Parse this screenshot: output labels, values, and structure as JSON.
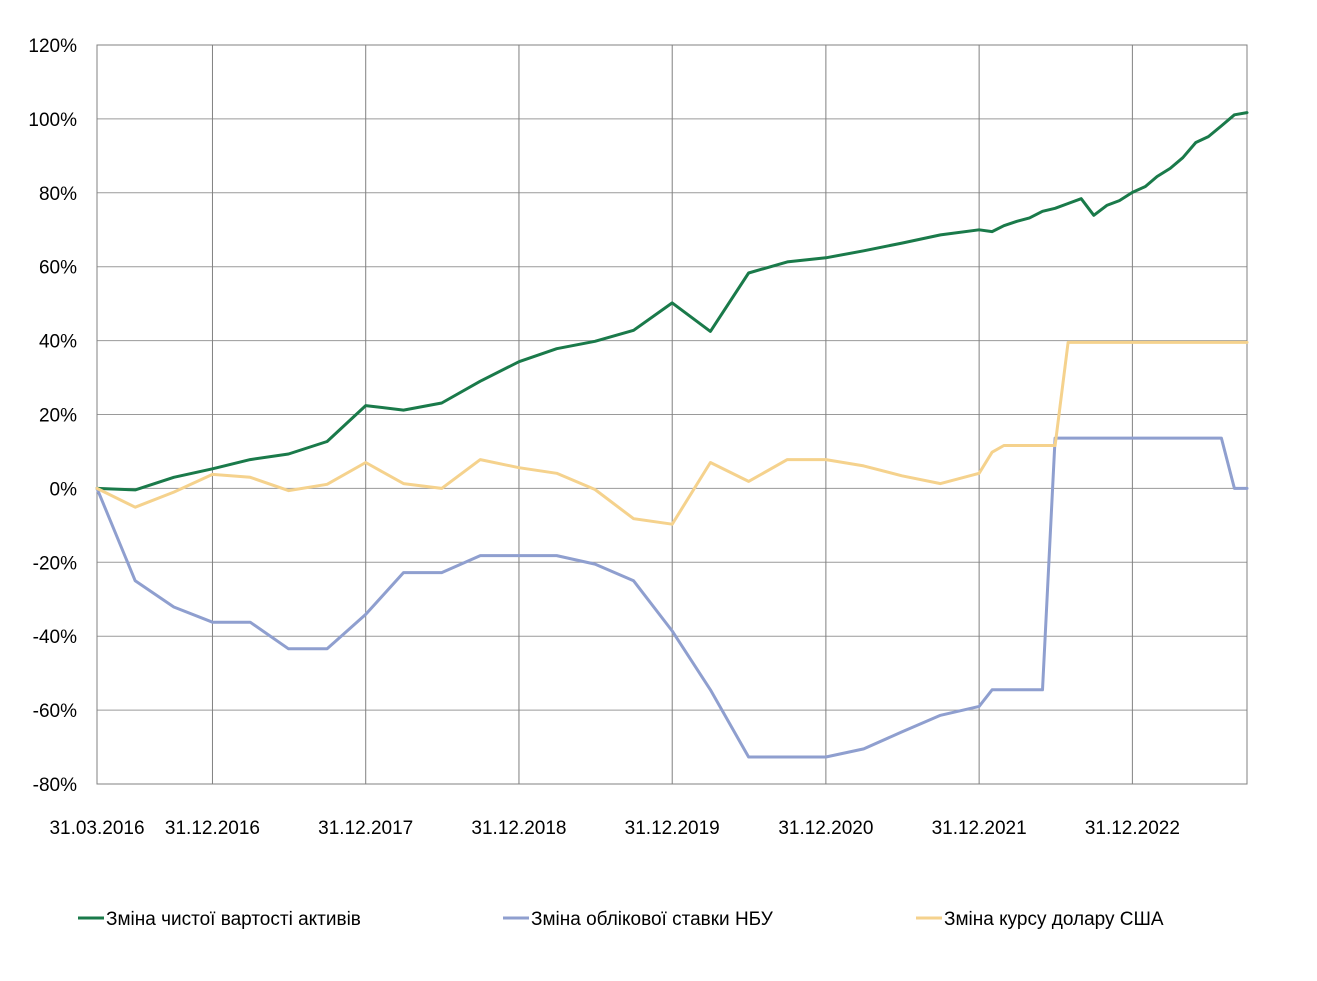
{
  "chart_data": {
    "type": "line",
    "title": "",
    "xlabel": "",
    "ylabel": "",
    "ylim": [
      -80,
      120
    ],
    "yticks": [
      120,
      100,
      80,
      60,
      40,
      20,
      0,
      -20,
      -40,
      -60,
      -80
    ],
    "ytick_labels": [
      "120%",
      "100%",
      "80%",
      "60%",
      "40%",
      "20%",
      "0%",
      "-20%",
      "-40%",
      "-60%",
      "-80%"
    ],
    "xlim": [
      "2016-03-31",
      "2023-09-30"
    ],
    "xticks": [
      "2016-03-31",
      "2016-12-31",
      "2017-12-31",
      "2018-12-31",
      "2019-12-31",
      "2020-12-31",
      "2021-12-31",
      "2022-12-31"
    ],
    "xtick_labels": [
      "31.03.2016",
      "31.12.2016",
      "31.12.2017",
      "31.12.2018",
      "31.12.2019",
      "31.12.2020",
      "31.12.2021",
      "31.12.2022"
    ],
    "grid": true,
    "legend_position": "bottom",
    "series": [
      {
        "name": "Зміна чистої вартості активів",
        "color": "#1a7a4a",
        "points": [
          [
            "2016-03-31",
            0.0
          ],
          [
            "2016-06-30",
            -0.4
          ],
          [
            "2016-09-30",
            3.0
          ],
          [
            "2016-12-31",
            5.3
          ],
          [
            "2017-03-31",
            7.8
          ],
          [
            "2017-06-30",
            9.3
          ],
          [
            "2017-09-30",
            12.7
          ],
          [
            "2017-12-31",
            22.4
          ],
          [
            "2018-03-31",
            21.2
          ],
          [
            "2018-06-30",
            23.1
          ],
          [
            "2018-09-30",
            29.0
          ],
          [
            "2018-12-31",
            34.3
          ],
          [
            "2019-03-31",
            37.8
          ],
          [
            "2019-06-30",
            39.8
          ],
          [
            "2019-09-30",
            42.8
          ],
          [
            "2019-12-31",
            50.2
          ],
          [
            "2020-03-31",
            42.5
          ],
          [
            "2020-06-30",
            58.3
          ],
          [
            "2020-09-30",
            61.3
          ],
          [
            "2020-12-31",
            62.4
          ],
          [
            "2021-03-31",
            64.3
          ],
          [
            "2021-06-30",
            66.4
          ],
          [
            "2021-09-30",
            68.6
          ],
          [
            "2021-12-31",
            70.0
          ],
          [
            "2022-01-31",
            69.5
          ],
          [
            "2022-02-28",
            71.1
          ],
          [
            "2022-03-31",
            72.3
          ],
          [
            "2022-04-30",
            73.2
          ],
          [
            "2022-05-31",
            75.0
          ],
          [
            "2022-06-30",
            75.8
          ],
          [
            "2022-07-31",
            77.1
          ],
          [
            "2022-08-31",
            78.4
          ],
          [
            "2022-09-30",
            73.9
          ],
          [
            "2022-10-31",
            76.6
          ],
          [
            "2022-11-30",
            77.9
          ],
          [
            "2022-12-31",
            80.1
          ],
          [
            "2023-01-31",
            81.7
          ],
          [
            "2023-02-28",
            84.4
          ],
          [
            "2023-03-31",
            86.6
          ],
          [
            "2023-04-30",
            89.5
          ],
          [
            "2023-05-31",
            93.6
          ],
          [
            "2023-06-30",
            95.2
          ],
          [
            "2023-07-31",
            98.1
          ],
          [
            "2023-08-31",
            101.1
          ],
          [
            "2023-09-30",
            101.7
          ]
        ]
      },
      {
        "name": "Зміна облікової ставки НБУ",
        "color": "#8f9fcf",
        "points": [
          [
            "2016-03-31",
            0.0
          ],
          [
            "2016-06-30",
            -25.0
          ],
          [
            "2016-09-30",
            -32.1
          ],
          [
            "2016-12-31",
            -36.2
          ],
          [
            "2017-03-31",
            -36.2
          ],
          [
            "2017-06-30",
            -43.4
          ],
          [
            "2017-09-30",
            -43.4
          ],
          [
            "2017-12-31",
            -34.1
          ],
          [
            "2018-03-31",
            -22.8
          ],
          [
            "2018-06-30",
            -22.8
          ],
          [
            "2018-09-30",
            -18.2
          ],
          [
            "2018-12-31",
            -18.2
          ],
          [
            "2019-03-31",
            -18.2
          ],
          [
            "2019-06-30",
            -20.5
          ],
          [
            "2019-09-30",
            -25.0
          ],
          [
            "2019-12-31",
            -38.6
          ],
          [
            "2020-03-31",
            -54.5
          ],
          [
            "2020-06-30",
            -72.7
          ],
          [
            "2020-09-30",
            -72.7
          ],
          [
            "2020-12-31",
            -72.7
          ],
          [
            "2021-03-31",
            -70.5
          ],
          [
            "2021-06-30",
            -65.9
          ],
          [
            "2021-09-30",
            -61.4
          ],
          [
            "2021-12-31",
            -59.0
          ],
          [
            "2022-01-31",
            -54.5
          ],
          [
            "2022-02-28",
            -54.5
          ],
          [
            "2022-03-31",
            -54.5
          ],
          [
            "2022-04-30",
            -54.5
          ],
          [
            "2022-05-31",
            -54.5
          ],
          [
            "2022-06-30",
            13.6
          ],
          [
            "2022-07-31",
            13.6
          ],
          [
            "2022-08-31",
            13.6
          ],
          [
            "2022-09-30",
            13.6
          ],
          [
            "2022-10-31",
            13.6
          ],
          [
            "2022-11-30",
            13.6
          ],
          [
            "2022-12-31",
            13.6
          ],
          [
            "2023-01-31",
            13.6
          ],
          [
            "2023-02-28",
            13.6
          ],
          [
            "2023-03-31",
            13.6
          ],
          [
            "2023-04-30",
            13.6
          ],
          [
            "2023-05-31",
            13.6
          ],
          [
            "2023-06-30",
            13.6
          ],
          [
            "2023-07-31",
            13.6
          ],
          [
            "2023-08-31",
            0.0
          ],
          [
            "2023-09-30",
            0.0
          ]
        ]
      },
      {
        "name": "Зміна курсу долару США",
        "color": "#f5d28d",
        "points": [
          [
            "2016-03-31",
            0.0
          ],
          [
            "2016-06-30",
            -5.1
          ],
          [
            "2016-09-30",
            -1.0
          ],
          [
            "2016-12-31",
            3.8
          ],
          [
            "2017-03-31",
            3.0
          ],
          [
            "2017-06-30",
            -0.6
          ],
          [
            "2017-09-30",
            1.1
          ],
          [
            "2017-12-31",
            7.0
          ],
          [
            "2018-03-31",
            1.3
          ],
          [
            "2018-06-30",
            0.0
          ],
          [
            "2018-09-30",
            7.8
          ],
          [
            "2018-12-31",
            5.6
          ],
          [
            "2019-03-31",
            4.1
          ],
          [
            "2019-06-30",
            -0.3
          ],
          [
            "2019-09-30",
            -8.2
          ],
          [
            "2019-12-31",
            -9.7
          ],
          [
            "2020-03-31",
            7.0
          ],
          [
            "2020-06-30",
            1.9
          ],
          [
            "2020-09-30",
            7.8
          ],
          [
            "2020-12-31",
            7.8
          ],
          [
            "2021-03-31",
            6.1
          ],
          [
            "2021-06-30",
            3.4
          ],
          [
            "2021-09-30",
            1.3
          ],
          [
            "2021-12-31",
            4.1
          ],
          [
            "2022-01-31",
            9.8
          ],
          [
            "2022-02-28",
            11.6
          ],
          [
            "2022-03-31",
            11.6
          ],
          [
            "2022-04-30",
            11.6
          ],
          [
            "2022-05-31",
            11.6
          ],
          [
            "2022-06-30",
            11.6
          ],
          [
            "2022-07-31",
            39.5
          ],
          [
            "2022-08-31",
            39.5
          ],
          [
            "2022-09-30",
            39.5
          ],
          [
            "2022-10-31",
            39.5
          ],
          [
            "2022-11-30",
            39.5
          ],
          [
            "2022-12-31",
            39.5
          ],
          [
            "2023-01-31",
            39.5
          ],
          [
            "2023-02-28",
            39.5
          ],
          [
            "2023-03-31",
            39.5
          ],
          [
            "2023-04-30",
            39.5
          ],
          [
            "2023-05-31",
            39.5
          ],
          [
            "2023-06-30",
            39.5
          ],
          [
            "2023-07-31",
            39.5
          ],
          [
            "2023-08-31",
            39.5
          ],
          [
            "2023-09-30",
            39.5
          ]
        ]
      }
    ]
  }
}
